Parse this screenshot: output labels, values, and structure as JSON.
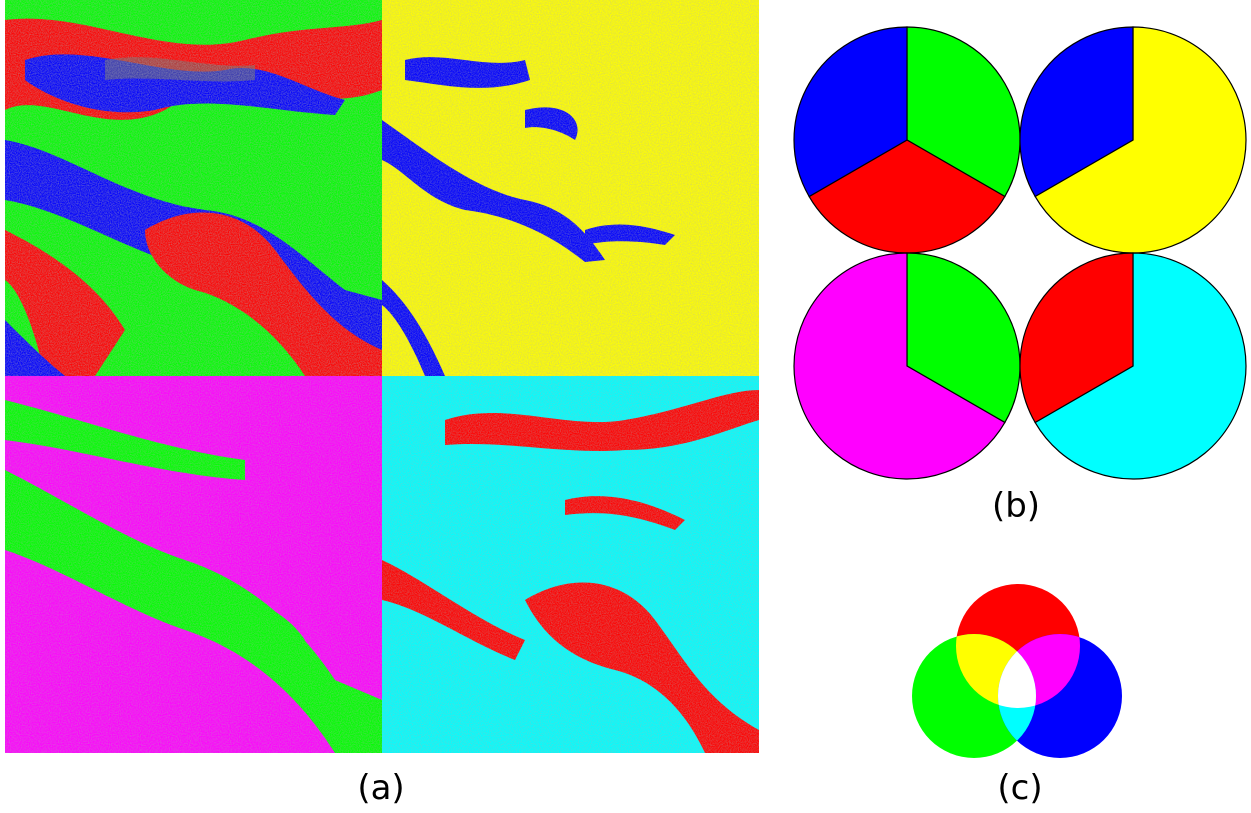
{
  "captions": {
    "a": "(a)",
    "b": "(b)",
    "c": "(c)"
  },
  "colors": {
    "red": "#ff0000",
    "green": "#00ff00",
    "blue": "#0000ff",
    "yellow": "#ffff00",
    "magenta": "#ff00ff",
    "cyan": "#00ffff",
    "white": "#ffffff",
    "noise_gray": "#6e6e6e"
  },
  "panel_a": {
    "quadrants": [
      {
        "name": "top-left",
        "palette": [
          "red",
          "green",
          "blue"
        ]
      },
      {
        "name": "top-right",
        "palette": [
          "yellow",
          "blue"
        ]
      },
      {
        "name": "bottom-left",
        "palette": [
          "magenta",
          "green"
        ]
      },
      {
        "name": "bottom-right",
        "palette": [
          "cyan",
          "red"
        ]
      }
    ]
  },
  "panel_b": {
    "pies": [
      {
        "name": "pie-rgb",
        "slices": [
          {
            "color": "green",
            "fraction": 0.3333
          },
          {
            "color": "red",
            "fraction": 0.3333
          },
          {
            "color": "blue",
            "fraction": 0.3334
          }
        ]
      },
      {
        "name": "pie-yb",
        "slices": [
          {
            "color": "yellow",
            "fraction": 0.6667
          },
          {
            "color": "blue",
            "fraction": 0.3333
          }
        ]
      },
      {
        "name": "pie-mg",
        "slices": [
          {
            "color": "green",
            "fraction": 0.3333
          },
          {
            "color": "magenta",
            "fraction": 0.6667
          }
        ]
      },
      {
        "name": "pie-cr",
        "slices": [
          {
            "color": "cyan",
            "fraction": 0.6667
          },
          {
            "color": "red",
            "fraction": 0.3333
          }
        ]
      }
    ]
  },
  "panel_c": {
    "venn": [
      "red",
      "green",
      "blue"
    ],
    "overlaps": [
      "yellow",
      "magenta",
      "cyan",
      "white"
    ]
  }
}
